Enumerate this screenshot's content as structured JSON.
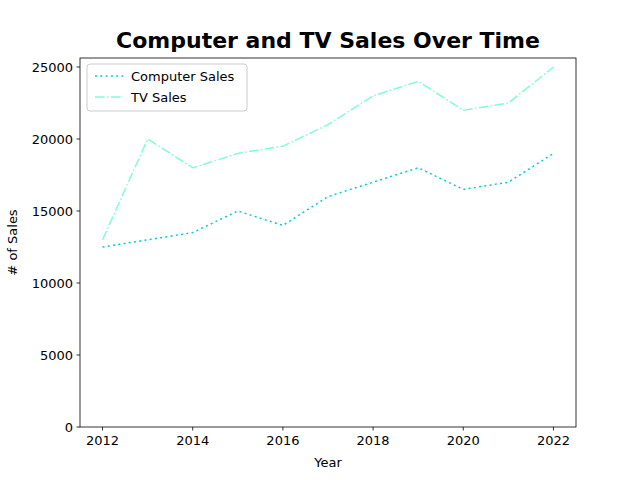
{
  "chart_data": {
    "type": "line",
    "title": "Computer and TV Sales Over Time",
    "x_label": "Year",
    "y_label": "# of Sales",
    "x": [
      2012,
      2013,
      2014,
      2015,
      2016,
      2017,
      2018,
      2019,
      2020,
      2021,
      2022
    ],
    "series": [
      {
        "name": "Computer Sales",
        "color": "#00ced1",
        "line_style": "dotted",
        "values": [
          12500,
          13000,
          13500,
          15000,
          14000,
          16000,
          17000,
          18000,
          16500,
          17000,
          19000
        ]
      },
      {
        "name": "TV Sales",
        "color": "#7fffd4",
        "line_style": "dashdot",
        "values": [
          13000,
          20000,
          18000,
          19000,
          19500,
          21000,
          23000,
          24000,
          22000,
          22500,
          25000
        ]
      }
    ],
    "xlim": [
      2011.5,
      2022.5
    ],
    "xticks": [
      2012,
      2014,
      2016,
      2018,
      2020,
      2022
    ],
    "ylim": [
      0,
      25625
    ],
    "yticks": [
      0,
      5000,
      10000,
      15000,
      20000,
      25000
    ],
    "grid": false,
    "legend": "upper-left"
  }
}
